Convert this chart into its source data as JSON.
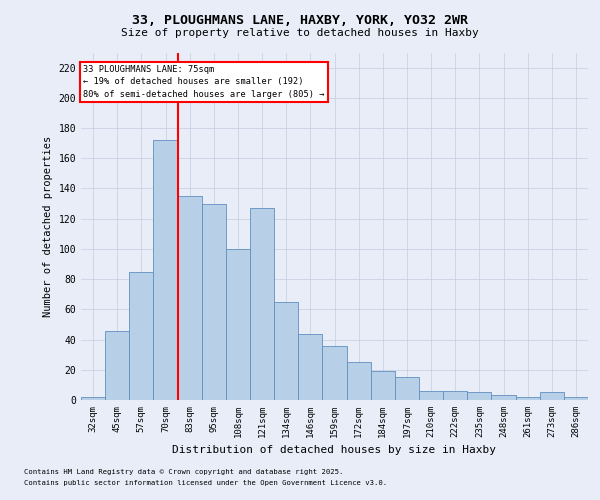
{
  "title_line1": "33, PLOUGHMANS LANE, HAXBY, YORK, YO32 2WR",
  "title_line2": "Size of property relative to detached houses in Haxby",
  "xlabel": "Distribution of detached houses by size in Haxby",
  "ylabel": "Number of detached properties",
  "categories": [
    "32sqm",
    "45sqm",
    "57sqm",
    "70sqm",
    "83sqm",
    "95sqm",
    "108sqm",
    "121sqm",
    "134sqm",
    "146sqm",
    "159sqm",
    "172sqm",
    "184sqm",
    "197sqm",
    "210sqm",
    "222sqm",
    "235sqm",
    "248sqm",
    "261sqm",
    "273sqm",
    "286sqm"
  ],
  "bar_heights": [
    2,
    46,
    85,
    172,
    135,
    130,
    100,
    127,
    65,
    44,
    36,
    25,
    19,
    15,
    6,
    6,
    5,
    3,
    2,
    5,
    2
  ],
  "bar_color": "#b8cfe8",
  "bar_edge_color": "#6090c0",
  "red_line_index": 3.5,
  "annotation_text": "33 PLOUGHMANS LANE: 75sqm\n← 19% of detached houses are smaller (192)\n80% of semi-detached houses are larger (805) →",
  "ylim_max": 230,
  "yticks": [
    0,
    20,
    40,
    60,
    80,
    100,
    120,
    140,
    160,
    180,
    200,
    220
  ],
  "footnote1": "Contains HM Land Registry data © Crown copyright and database right 2025.",
  "footnote2": "Contains public sector information licensed under the Open Government Licence v3.0.",
  "bg_color": "#e8edf8",
  "grid_color": "#c5cce0"
}
